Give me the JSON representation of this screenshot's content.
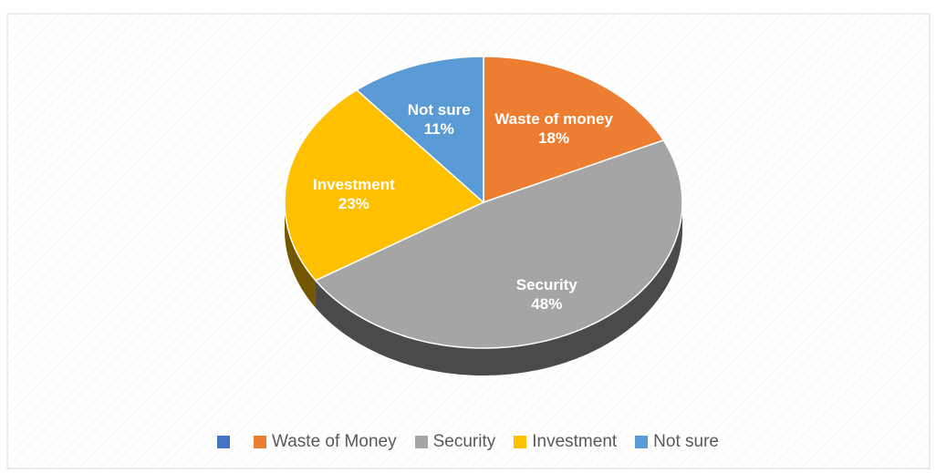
{
  "chart_data": {
    "type": "pie",
    "categories": [
      "Waste of money",
      "Security",
      "Investment",
      "Not sure"
    ],
    "values": [
      18,
      48,
      23,
      11
    ],
    "value_labels": [
      "18%",
      "48%",
      "23%",
      "11%"
    ],
    "colors": [
      "#ed7d31",
      "#a5a5a5",
      "#ffc000",
      "#5b9bd5"
    ],
    "legend": [
      {
        "label": null,
        "color": "#4472c4"
      },
      {
        "label": "Waste of Money",
        "color": "#ed7d31"
      },
      {
        "label": "Security",
        "color": "#a5a5a5"
      },
      {
        "label": "Investment",
        "color": "#ffc000"
      },
      {
        "label": "Not sure",
        "color": "#5b9bd5"
      }
    ]
  }
}
